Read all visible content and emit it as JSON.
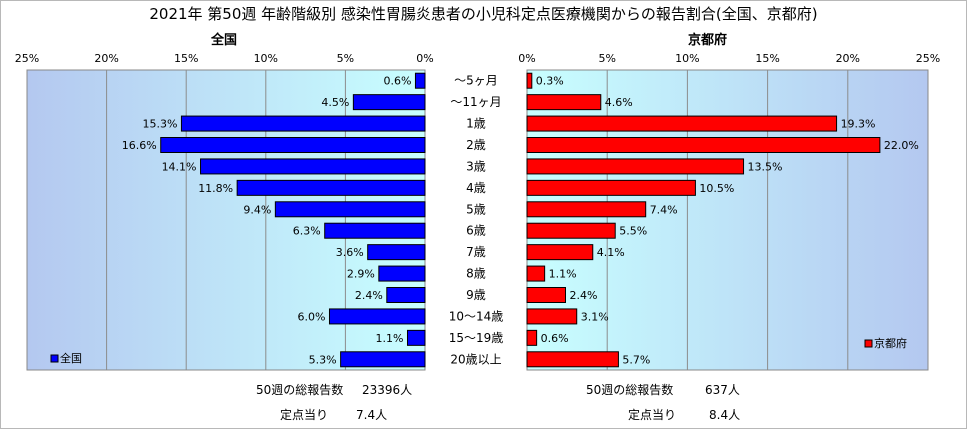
{
  "title": "2021年 第50週 年齢階級別 感染性胃腸炎患者の小児科定点医療機関からの報告割合(全国、京都府)",
  "categories": [
    "～5ヶ月",
    "～11ヶ月",
    "1歳",
    "2歳",
    "3歳",
    "4歳",
    "5歳",
    "6歳",
    "7歳",
    "8歳",
    "9歳",
    "10～14歳",
    "15～19歳",
    "20歳以上"
  ],
  "axis_ticks": [
    "0%",
    "5%",
    "10%",
    "15%",
    "20%",
    "25%"
  ],
  "colors": {
    "national": "#0000ff",
    "kyoto": "#ff0000",
    "national_bg_left": "#b4c8f0",
    "national_bg_right": "#c8ffff"
  },
  "chart_data": [
    {
      "type": "bar",
      "title": "全国",
      "categories": [
        "～5ヶ月",
        "～11ヶ月",
        "1歳",
        "2歳",
        "3歳",
        "4歳",
        "5歳",
        "6歳",
        "7歳",
        "8歳",
        "9歳",
        "10～14歳",
        "15～19歳",
        "20歳以上"
      ],
      "series": [
        {
          "name": "全国",
          "values": [
            0.6,
            4.5,
            15.3,
            16.6,
            14.1,
            11.8,
            9.4,
            6.3,
            3.6,
            2.9,
            2.4,
            6.0,
            1.1,
            5.3
          ],
          "labels": [
            "0.6%",
            "4.5%",
            "15.3%",
            "16.6%",
            "14.1%",
            "11.8%",
            "9.4%",
            "6.3%",
            "3.6%",
            "2.9%",
            "2.4%",
            "6.0%",
            "1.1%",
            "5.3%"
          ]
        }
      ],
      "xlim": [
        0,
        25
      ],
      "x_reversed": true,
      "orientation": "horizontal",
      "grid": true,
      "legend_position": "bottom-left"
    },
    {
      "type": "bar",
      "title": "京都府",
      "categories": [
        "～5ヶ月",
        "～11ヶ月",
        "1歳",
        "2歳",
        "3歳",
        "4歳",
        "5歳",
        "6歳",
        "7歳",
        "8歳",
        "9歳",
        "10～14歳",
        "15～19歳",
        "20歳以上"
      ],
      "series": [
        {
          "name": "京都府",
          "values": [
            0.3,
            4.6,
            19.3,
            22.0,
            13.5,
            10.5,
            7.4,
            5.5,
            4.1,
            1.1,
            2.4,
            3.1,
            0.6,
            5.7
          ],
          "labels": [
            "0.3%",
            "4.6%",
            "19.3%",
            "22.0%",
            "13.5%",
            "10.5%",
            "7.4%",
            "5.5%",
            "4.1%",
            "1.1%",
            "2.4%",
            "3.1%",
            "0.6%",
            "5.7%"
          ]
        }
      ],
      "xlim": [
        0,
        25
      ],
      "orientation": "horizontal",
      "grid": true,
      "legend_position": "bottom-right"
    }
  ],
  "footer": {
    "national_total_label": "50週の総報告数",
    "national_total_value": "23396人",
    "national_per_label": "定点当り",
    "national_per_value": "7.4人",
    "kyoto_total_label": "50週の総報告数",
    "kyoto_total_value": "637人",
    "kyoto_per_label": "定点当り",
    "kyoto_per_value": "8.4人"
  }
}
